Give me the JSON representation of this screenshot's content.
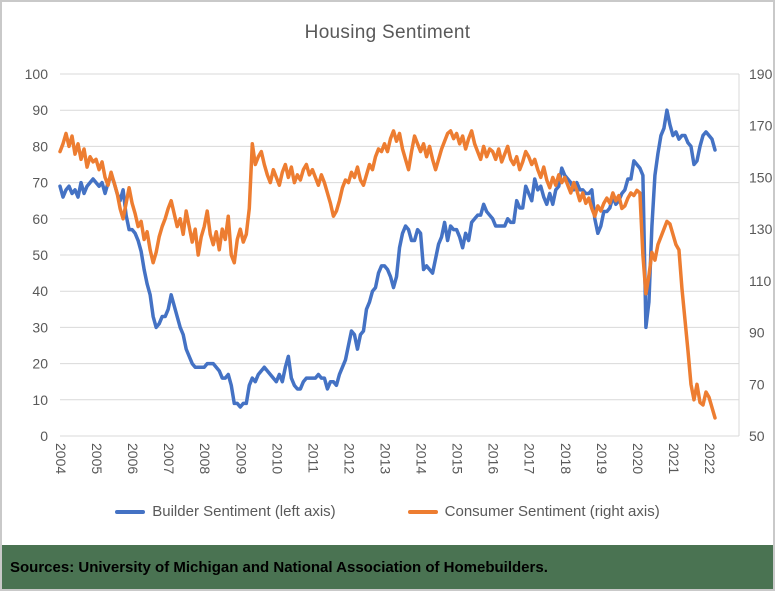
{
  "chart_data": {
    "type": "line",
    "title": "Housing Sentiment",
    "frequency": "monthly",
    "x_start": "2004-01",
    "x_end": "2022-03",
    "x_tick_labels": [
      "2004",
      "2005",
      "2006",
      "2007",
      "2008",
      "2009",
      "2010",
      "2011",
      "2012",
      "2013",
      "2014",
      "2015",
      "2016",
      "2017",
      "2018",
      "2019",
      "2020",
      "2021",
      "2022"
    ],
    "axes": {
      "left": {
        "min": 0,
        "max": 100,
        "step": 10,
        "ticks": [
          0,
          10,
          20,
          30,
          40,
          50,
          60,
          70,
          80,
          90,
          100
        ]
      },
      "right": {
        "min": 50,
        "max": 190,
        "step": 20,
        "ticks": [
          50,
          70,
          90,
          110,
          130,
          150,
          170,
          190
        ]
      }
    },
    "grid": true,
    "legend_position": "bottom",
    "series": [
      {
        "name": "Builder Sentiment (left axis)",
        "axis": "left",
        "color": "#4472C4",
        "values": [
          69,
          66,
          68,
          69,
          67,
          68,
          66,
          70,
          67,
          69,
          70,
          71,
          70,
          69,
          70,
          67,
          70,
          72,
          70,
          67,
          65,
          68,
          61,
          57,
          57,
          56,
          54,
          51,
          46,
          42,
          39,
          33,
          30,
          31,
          33,
          33,
          35,
          39,
          36,
          33,
          30,
          28,
          24,
          22,
          20,
          19,
          19,
          19,
          19,
          20,
          20,
          20,
          19,
          18,
          16,
          16,
          17,
          14,
          9,
          9,
          8,
          9,
          9,
          14,
          16,
          15,
          17,
          18,
          19,
          18,
          17,
          16,
          15,
          17,
          15,
          19,
          22,
          16,
          14,
          13,
          13,
          15,
          16,
          16,
          16,
          16,
          17,
          16,
          16,
          13,
          15,
          15,
          14,
          17,
          19,
          21,
          25,
          29,
          28,
          24,
          28,
          29,
          35,
          37,
          40,
          41,
          45,
          47,
          47,
          46,
          44,
          41,
          44,
          52,
          56,
          58,
          57,
          54,
          54,
          57,
          56,
          46,
          47,
          46,
          45,
          49,
          53,
          55,
          59,
          54,
          58,
          57,
          57,
          55,
          52,
          56,
          54,
          59,
          60,
          61,
          61,
          64,
          62,
          61,
          60,
          58,
          58,
          58,
          58,
          60,
          59,
          59,
          65,
          63,
          63,
          69,
          67,
          65,
          71,
          68,
          69,
          66,
          64,
          67,
          64,
          68,
          69,
          74,
          72,
          71,
          70,
          68,
          70,
          68,
          68,
          67,
          67,
          68,
          60,
          56,
          58,
          62,
          62,
          63,
          66,
          64,
          65,
          67,
          68,
          71,
          71,
          76,
          75,
          74,
          72,
          30,
          37,
          58,
          72,
          78,
          83,
          85,
          90,
          86,
          83,
          84,
          82,
          83,
          83,
          81,
          80,
          75,
          76,
          80,
          83,
          84,
          83,
          82,
          79
        ]
      },
      {
        "name": "Consumer Sentiment (right axis)",
        "axis": "right",
        "color": "#ED7D31",
        "values": [
          160,
          163,
          167,
          162,
          166,
          159,
          163,
          157,
          161,
          154,
          158,
          156,
          157,
          153,
          156,
          150,
          147,
          152,
          148,
          144,
          138,
          134,
          140,
          146,
          140,
          136,
          131,
          133,
          126,
          129,
          122,
          117,
          121,
          127,
          131,
          134,
          138,
          141,
          136,
          131,
          134,
          128,
          137,
          131,
          125,
          130,
          120,
          127,
          131,
          137,
          128,
          124,
          129,
          122,
          130,
          126,
          135,
          120,
          117,
          126,
          130,
          125,
          128,
          138,
          163,
          155,
          158,
          160,
          155,
          151,
          148,
          153,
          150,
          147,
          152,
          155,
          150,
          154,
          148,
          151,
          149,
          153,
          155,
          151,
          153,
          150,
          147,
          151,
          148,
          144,
          140,
          135,
          137,
          141,
          146,
          149,
          148,
          152,
          150,
          154,
          149,
          147,
          151,
          155,
          153,
          158,
          161,
          160,
          163,
          160,
          165,
          168,
          164,
          167,
          161,
          157,
          153,
          160,
          166,
          163,
          160,
          163,
          158,
          162,
          157,
          153,
          157,
          161,
          164,
          167,
          168,
          165,
          167,
          163,
          166,
          161,
          165,
          168,
          163,
          160,
          157,
          162,
          158,
          161,
          160,
          157,
          161,
          156,
          159,
          162,
          157,
          155,
          158,
          153,
          156,
          160,
          158,
          155,
          157,
          153,
          150,
          154,
          149,
          146,
          150,
          147,
          151,
          148,
          150,
          147,
          144,
          148,
          145,
          141,
          144,
          140,
          142,
          138,
          135,
          139,
          137,
          140,
          142,
          140,
          144,
          141,
          143,
          138,
          139,
          142,
          144,
          143,
          145,
          144,
          120,
          105,
          112,
          121,
          118,
          124,
          127,
          130,
          133,
          132,
          128,
          124,
          122,
          107,
          95,
          83,
          70,
          64,
          70,
          63,
          62,
          67,
          65,
          61,
          57
        ]
      }
    ]
  },
  "source_note": "Sources: University of Michigan and National Association of Homebuilders.",
  "colors": {
    "grid": "#D9D9D9",
    "axis_text": "#595959",
    "title_text": "#595959",
    "builder_line": "#4472C4",
    "consumer_line": "#ED7D31",
    "source_bar_bg": "#4A7352",
    "source_text": "#000000",
    "frame_border": "#C9C9C9"
  }
}
